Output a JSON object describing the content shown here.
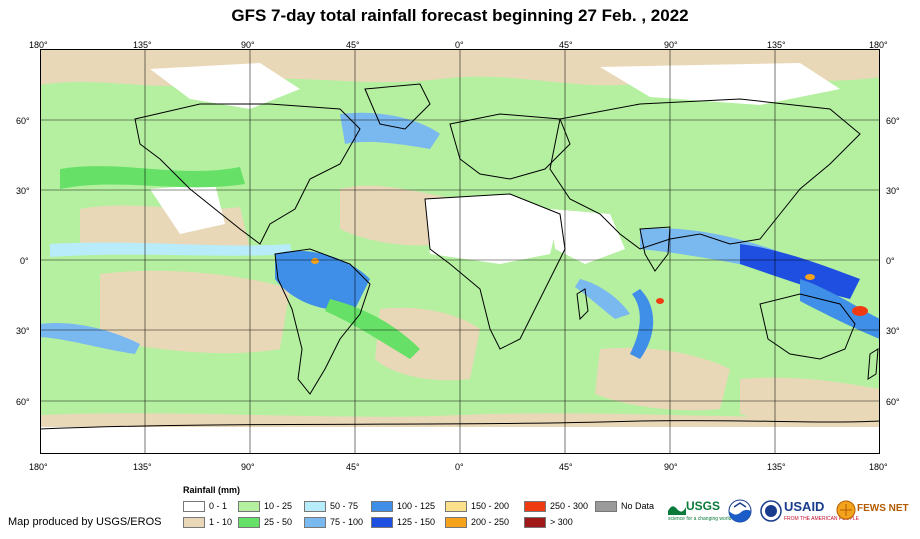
{
  "title": "GFS 7-day total rainfall forecast beginning 27 Feb. , 2022",
  "lon_ticks": [
    "180°",
    "135°",
    "90°",
    "45°",
    "0°",
    "45°",
    "90°",
    "135°",
    "180°"
  ],
  "lat_ticks": [
    "60°",
    "30°",
    "0°",
    "30°",
    "60°"
  ],
  "legend": {
    "title": "Rainfall (mm)",
    "items": [
      {
        "label": "0 - 1",
        "color": "#ffffff"
      },
      {
        "label": "1 - 10",
        "color": "#e9d8b7"
      },
      {
        "label": "10 - 25",
        "color": "#b4f0a0"
      },
      {
        "label": "25 - 50",
        "color": "#66e066"
      },
      {
        "label": "50 - 75",
        "color": "#b8ecfa"
      },
      {
        "label": "75 - 100",
        "color": "#7ab8f0"
      },
      {
        "label": "100 - 125",
        "color": "#3f8ee8"
      },
      {
        "label": "125 - 150",
        "color": "#1f4fe0"
      },
      {
        "label": "150 - 200",
        "color": "#fde08a"
      },
      {
        "label": "200 - 250",
        "color": "#f7a21b"
      },
      {
        "label": "250 - 300",
        "color": "#f03a12"
      },
      {
        "label": "> 300",
        "color": "#a01818"
      },
      {
        "label": "No Data",
        "color": "#9a9a9a"
      }
    ]
  },
  "credit": "Map produced by USGS/EROS",
  "logos": {
    "usgs": "USGS",
    "usgs_tagline": "science for a changing world",
    "usaid": "USAID",
    "usaid_tagline": "FROM THE AMERICAN PEOPLE",
    "fewsnet": "FEWS NET"
  }
}
